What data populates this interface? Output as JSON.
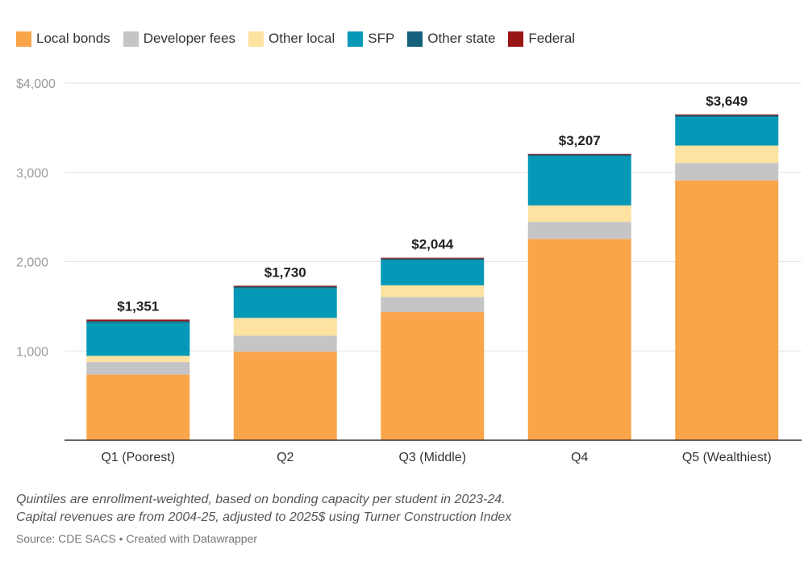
{
  "colors": {
    "Local bonds": "#f9a54a",
    "Developer fees": "#c5c5c5",
    "Other local": "#fde2a1",
    "SFP": "#0599b7",
    "Other state": "#15607a",
    "Federal": "#9a1515"
  },
  "legend": [
    {
      "label": "Local bonds",
      "color": "#f9a54a"
    },
    {
      "label": "Developer fees",
      "color": "#c5c5c5"
    },
    {
      "label": "Other local",
      "color": "#fde2a1"
    },
    {
      "label": "SFP",
      "color": "#0599b7"
    },
    {
      "label": "Other state",
      "color": "#15607a"
    },
    {
      "label": "Federal",
      "color": "#9a1515"
    }
  ],
  "notes": {
    "line1": "Quintiles are enrollment-weighted, based on bonding capacity per student in 2023-24.",
    "line2": "Capital revenues are from 2004-25, adjusted to 2025$ using Turner Construction Index",
    "source": "Source: CDE SACS • Created with Datawrapper"
  },
  "chart_data": {
    "type": "bar",
    "stacked": true,
    "categories": [
      "Q1 (Poorest)",
      "Q2",
      "Q3 (Middle)",
      "Q4",
      "Q5 (Wealthiest)"
    ],
    "series": [
      {
        "name": "Local bonds",
        "values": [
          735,
          990,
          1435,
          2255,
          2910
        ]
      },
      {
        "name": "Developer fees",
        "values": [
          140,
          180,
          170,
          190,
          195
        ]
      },
      {
        "name": "Other local",
        "values": [
          70,
          200,
          130,
          185,
          195
        ]
      },
      {
        "name": "SFP",
        "values": [
          370,
          330,
          280,
          550,
          320
        ]
      },
      {
        "name": "Other state",
        "values": [
          20,
          20,
          20,
          20,
          20
        ]
      },
      {
        "name": "Federal",
        "values": [
          16,
          10,
          9,
          7,
          9
        ]
      }
    ],
    "totals": [
      "$1,351",
      "$1,730",
      "$2,044",
      "$3,207",
      "$3,649"
    ],
    "ytick_labels": [
      "$4,000",
      "3,000",
      "2,000",
      "1,000"
    ],
    "yticks": [
      4000,
      3000,
      2000,
      1000
    ],
    "ylim": [
      0,
      4000
    ],
    "grid": true,
    "legend_position": "top-left"
  }
}
